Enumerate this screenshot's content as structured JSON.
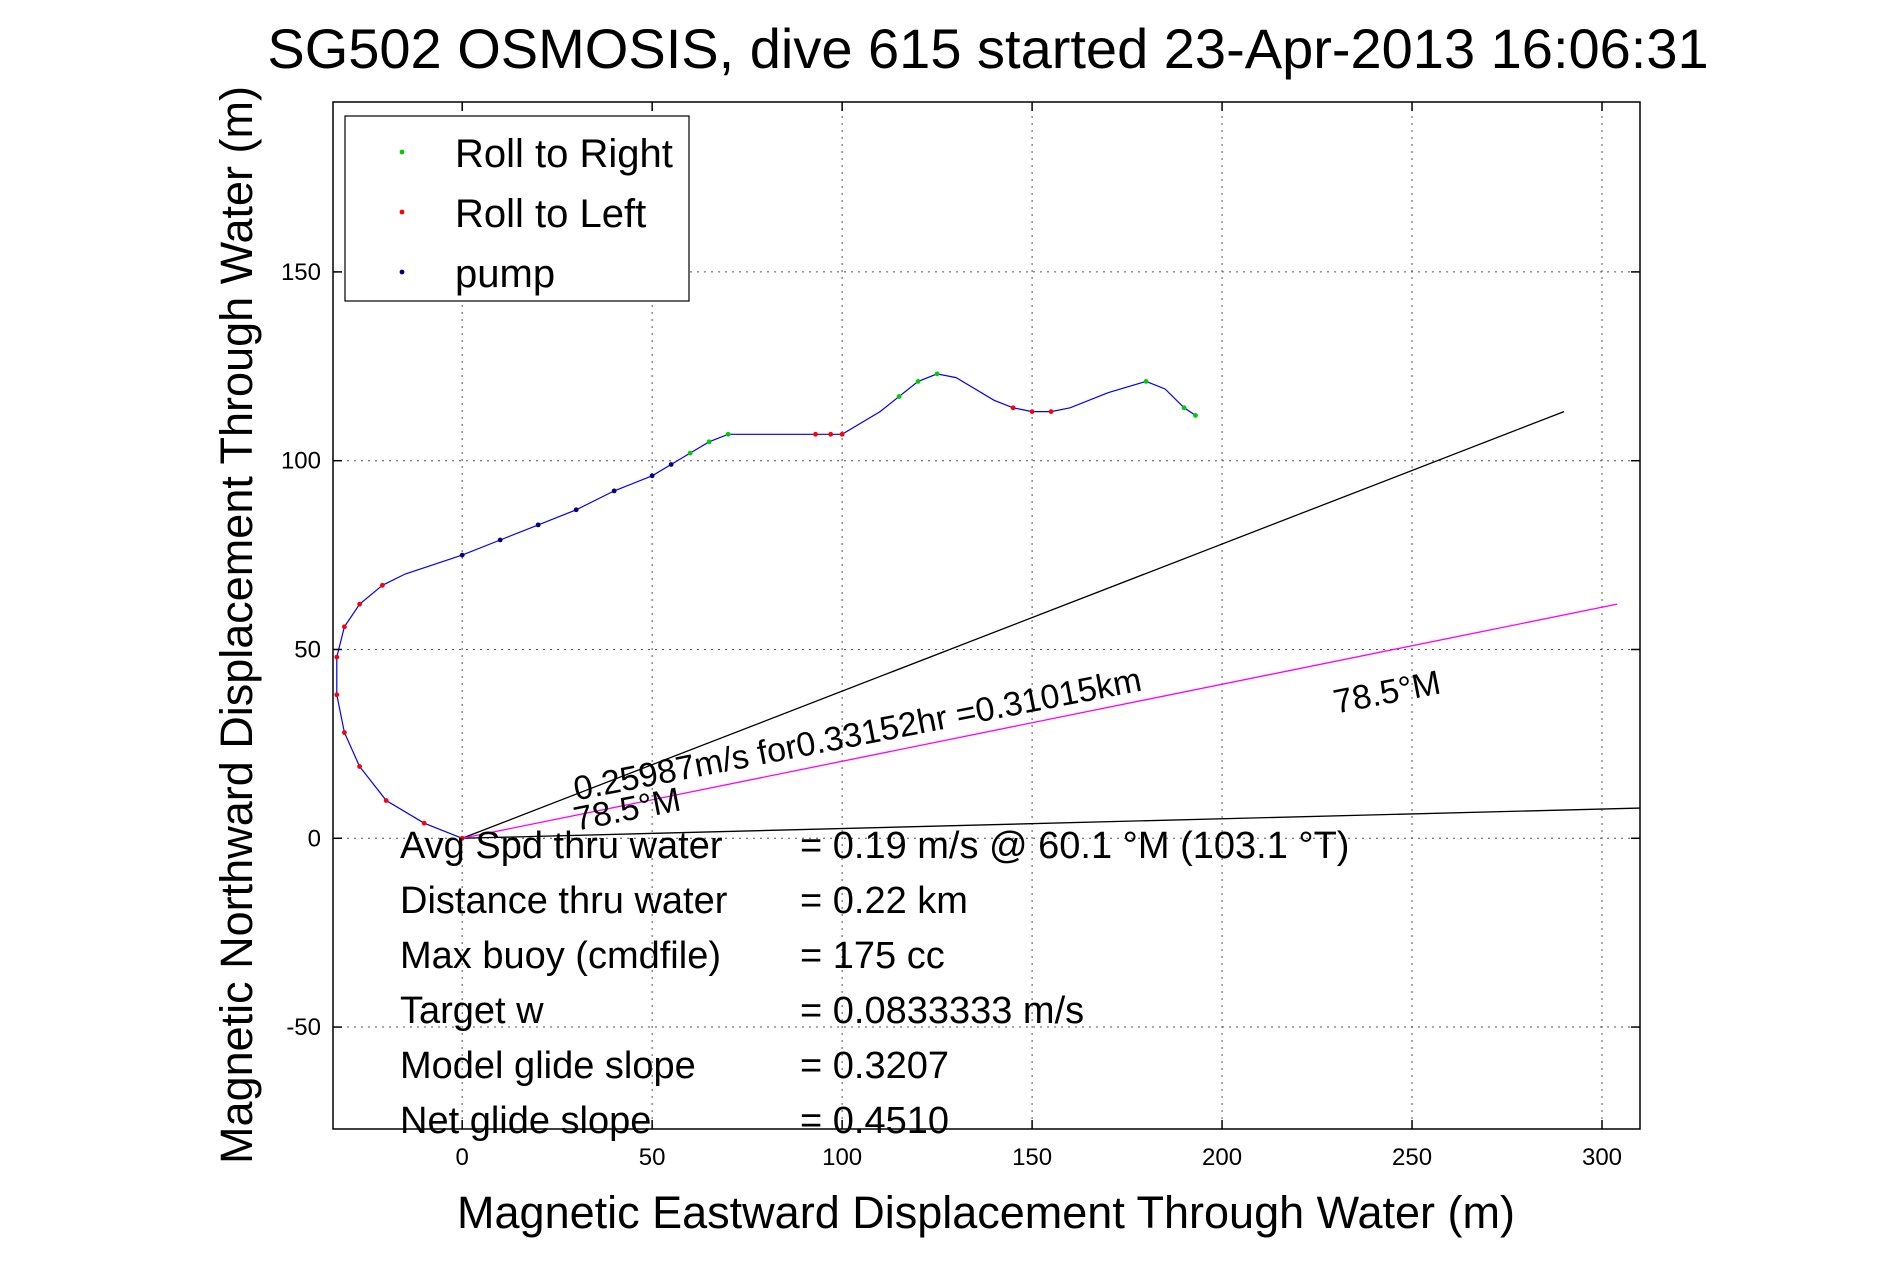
{
  "chart_data": {
    "type": "line",
    "title": "SG502 OSMOSIS, dive 615 started 23-Apr-2013 16:06:31",
    "xlabel": "Magnetic Eastward Displacement Through Water (m)",
    "ylabel": "Magnetic Northward Displacement Through Water (m)",
    "xlim": [
      -34,
      310
    ],
    "ylim": [
      -77,
      195
    ],
    "xticks": [
      0,
      50,
      100,
      150,
      200,
      250,
      300
    ],
    "yticks": [
      -50,
      0,
      50,
      100,
      150
    ],
    "grid": true,
    "legend_position": "top-left",
    "legend": [
      {
        "label": "Roll to Right",
        "color": "#00cc00"
      },
      {
        "label": "Roll to Left",
        "color": "#ff0000"
      },
      {
        "label": "pump",
        "color": "#000080"
      }
    ],
    "track": {
      "color": "#0000ff",
      "x": [
        0,
        -10,
        -20,
        -27,
        -31,
        -33,
        -33,
        -31,
        -27,
        -21,
        -15,
        0,
        10,
        20,
        30,
        40,
        50,
        55,
        60,
        65,
        70,
        80,
        90,
        95,
        100,
        110,
        120,
        125,
        130,
        140,
        145,
        150,
        155,
        160,
        170,
        180,
        185,
        190,
        193
      ],
      "y": [
        0,
        4,
        10,
        19,
        28,
        38,
        48,
        56,
        62,
        67,
        70,
        75,
        79,
        83,
        87,
        92,
        96,
        99,
        102,
        105,
        107,
        107,
        107,
        107,
        107,
        113,
        121,
        123,
        122,
        116,
        114,
        113,
        113,
        114,
        118,
        121,
        119,
        114,
        112
      ]
    },
    "markers": [
      {
        "name": "Roll to Left",
        "color": "#ff0000",
        "x": [
          0,
          -10,
          -20,
          -27,
          -31,
          -33,
          -33,
          -31,
          -27,
          -21,
          93,
          97,
          100,
          145,
          150,
          155
        ],
        "y": [
          0,
          4,
          10,
          19,
          28,
          38,
          48,
          56,
          62,
          67,
          107,
          107,
          107,
          114,
          113,
          113
        ]
      },
      {
        "name": "Roll to Right",
        "color": "#00cc00",
        "x": [
          60,
          65,
          70,
          115,
          120,
          125,
          180,
          190,
          193
        ],
        "y": [
          102,
          105,
          107,
          117,
          121,
          123,
          121,
          114,
          112
        ]
      },
      {
        "name": "pump",
        "color": "#000080",
        "x": [
          0,
          10,
          20,
          30,
          40,
          50,
          55
        ],
        "y": [
          75,
          79,
          83,
          87,
          92,
          96,
          99
        ]
      }
    ],
    "lines": [
      {
        "name": "ref-upper",
        "color": "#000000",
        "x": [
          0,
          290
        ],
        "y": [
          0,
          113
        ]
      },
      {
        "name": "ref-lower",
        "color": "#000000",
        "x": [
          0,
          310
        ],
        "y": [
          0,
          8
        ]
      },
      {
        "name": "heading",
        "color": "#ff00ff",
        "x": [
          0,
          304
        ],
        "y": [
          0,
          62
        ]
      }
    ],
    "annotations": [
      {
        "text": "0.25987m/s for0.33152hr =0.31015km",
        "x": 30,
        "y": 10,
        "rotate": -11
      },
      {
        "text": "78.5°M",
        "x": 30,
        "y": 2,
        "rotate": -11
      },
      {
        "text": "78.5°M",
        "x": 230,
        "y": 33,
        "rotate": -11
      }
    ],
    "stats": [
      {
        "label": "Avg Spd thru water",
        "value": "=  0.19 m/s @  60.1 °M (103.1 °T)"
      },
      {
        "label": "Distance thru water",
        "value": "=  0.22 km"
      },
      {
        "label": "Max buoy (cmdfile)",
        "value": "= 175 cc"
      },
      {
        "label": "Target w",
        "value": "= 0.0833333 m/s"
      },
      {
        "label": "Model glide slope",
        "value": "= 0.3207"
      },
      {
        "label": "Net glide slope",
        "value": "= 0.4510"
      }
    ]
  }
}
